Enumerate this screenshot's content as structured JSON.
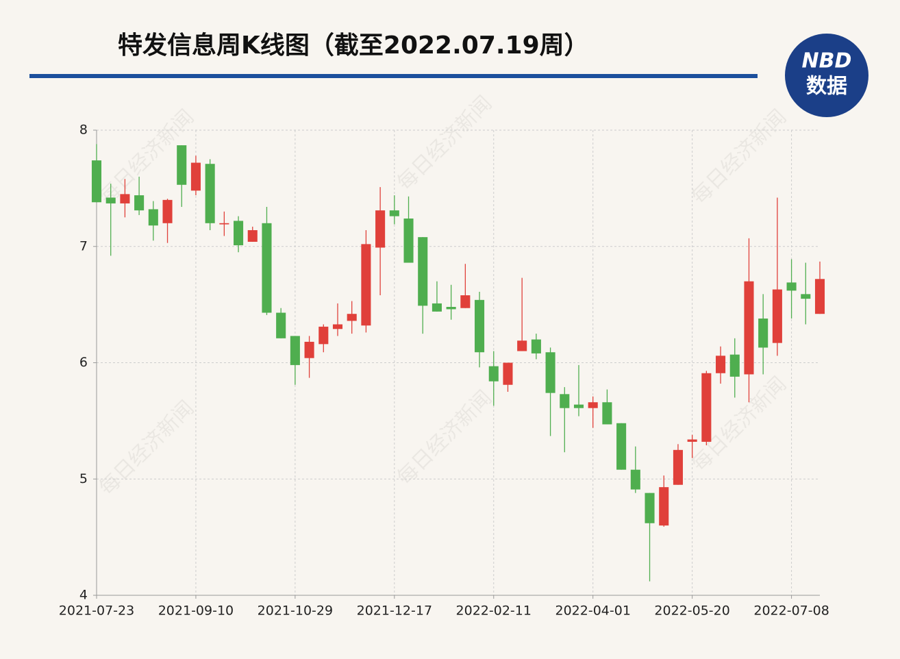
{
  "chart_data": {
    "type": "candlestick",
    "title": "特发信息周K线图（截至2022.07.19周）",
    "categories": [
      "2021-07-23",
      null,
      null,
      null,
      null,
      null,
      null,
      "2021-09-10",
      null,
      null,
      null,
      null,
      null,
      null,
      "2021-10-29",
      null,
      null,
      null,
      null,
      null,
      null,
      "2021-12-17",
      null,
      null,
      null,
      null,
      null,
      null,
      "2022-02-11",
      null,
      null,
      null,
      null,
      null,
      null,
      "2022-04-01",
      null,
      null,
      null,
      null,
      null,
      null,
      "2022-05-20",
      null,
      null,
      null,
      null,
      null,
      null,
      "2022-07-08",
      null,
      null
    ],
    "open": [
      7.74,
      7.42,
      7.37,
      7.44,
      7.32,
      7.2,
      7.87,
      7.48,
      7.71,
      7.19,
      7.22,
      7.04,
      7.2,
      6.43,
      6.23,
      6.04,
      6.16,
      6.29,
      6.36,
      6.32,
      6.99,
      7.31,
      7.24,
      7.08,
      6.51,
      6.48,
      6.47,
      6.54,
      5.97,
      5.81,
      6.1,
      6.2,
      6.09,
      5.73,
      5.64,
      5.61,
      5.66,
      5.48,
      5.08,
      4.88,
      4.6,
      4.95,
      5.32,
      5.32,
      5.91,
      6.07,
      5.9,
      6.38,
      6.17,
      6.69,
      6.59,
      6.42
    ],
    "high": [
      7.88,
      7.54,
      7.58,
      7.6,
      7.39,
      7.41,
      7.87,
      7.78,
      7.75,
      7.3,
      7.26,
      7.17,
      7.34,
      6.47,
      6.23,
      6.23,
      6.33,
      6.51,
      6.53,
      7.14,
      7.51,
      7.44,
      7.43,
      7.08,
      6.7,
      6.67,
      6.85,
      6.61,
      6.1,
      6.0,
      6.73,
      6.25,
      6.13,
      5.79,
      5.98,
      5.71,
      5.77,
      5.48,
      5.28,
      4.88,
      5.03,
      5.3,
      5.38,
      5.93,
      6.14,
      6.21,
      7.07,
      6.59,
      7.42,
      6.89,
      6.86,
      6.87
    ],
    "low": [
      7.38,
      6.92,
      7.25,
      7.27,
      7.05,
      7.03,
      7.34,
      7.44,
      7.14,
      7.09,
      6.95,
      7.04,
      6.41,
      6.21,
      5.81,
      5.87,
      6.09,
      6.23,
      6.25,
      6.26,
      6.58,
      7.19,
      6.86,
      6.25,
      6.44,
      6.37,
      6.47,
      5.96,
      5.63,
      5.75,
      6.1,
      6.03,
      5.37,
      5.23,
      5.54,
      5.44,
      5.47,
      5.08,
      4.88,
      4.12,
      4.59,
      4.95,
      5.18,
      5.29,
      5.82,
      5.7,
      5.66,
      5.9,
      6.06,
      6.38,
      6.33,
      6.42
    ],
    "close": [
      7.38,
      7.37,
      7.45,
      7.31,
      7.18,
      7.4,
      7.53,
      7.72,
      7.2,
      7.2,
      7.01,
      7.14,
      6.43,
      6.21,
      5.98,
      6.18,
      6.31,
      6.33,
      6.42,
      7.02,
      7.31,
      7.26,
      6.86,
      6.49,
      6.44,
      6.46,
      6.58,
      6.09,
      5.84,
      6.0,
      6.19,
      6.08,
      5.74,
      5.61,
      5.61,
      5.66,
      5.47,
      5.08,
      4.91,
      4.62,
      4.93,
      5.25,
      5.34,
      5.91,
      6.06,
      5.88,
      6.7,
      6.13,
      6.63,
      6.62,
      6.55,
      6.72
    ],
    "up_color": "#e0403a",
    "down_color": "#4fae4f",
    "ylim": [
      4,
      8
    ],
    "yticks": [
      4,
      5,
      6,
      7,
      8
    ],
    "grid": true
  },
  "logo": {
    "top": "NBD",
    "bottom": "数据"
  },
  "watermark": "每日经济新闻"
}
